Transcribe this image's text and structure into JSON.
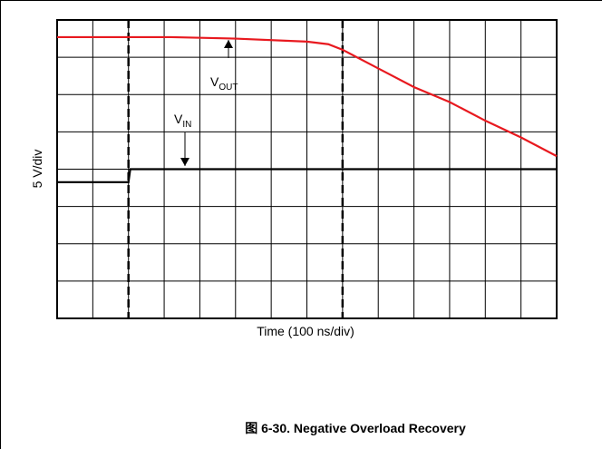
{
  "chart_data": {
    "type": "line",
    "title": "图 6-30. Negative Overload Recovery",
    "ylabel": "5 V/div",
    "xlabel": "Time (100 ns/div)",
    "xlim": [
      0,
      14
    ],
    "ylim": [
      0,
      8
    ],
    "xticks": [
      0,
      1,
      2,
      3,
      4,
      5,
      6,
      7,
      8,
      9,
      10,
      11,
      12,
      13,
      14
    ],
    "yticks": [
      0,
      1,
      2,
      3,
      4,
      5,
      6,
      7,
      8
    ],
    "grid": true,
    "vlines": [
      2,
      8
    ],
    "series": [
      {
        "name": "VOUT",
        "label": "V",
        "sub": "OUT",
        "color": "#e8191f",
        "x": [
          0,
          3.2,
          5,
          7,
          7.6,
          8,
          9,
          10,
          11,
          12,
          13,
          14
        ],
        "values": [
          7.54,
          7.54,
          7.5,
          7.42,
          7.35,
          7.2,
          6.7,
          6.2,
          5.8,
          5.3,
          4.85,
          4.35
        ]
      },
      {
        "name": "VIN",
        "label": "V",
        "sub": "IN",
        "color": "#000000",
        "x": [
          0,
          2,
          2.05,
          14
        ],
        "values": [
          3.65,
          3.65,
          4.0,
          4.0
        ]
      }
    ]
  }
}
